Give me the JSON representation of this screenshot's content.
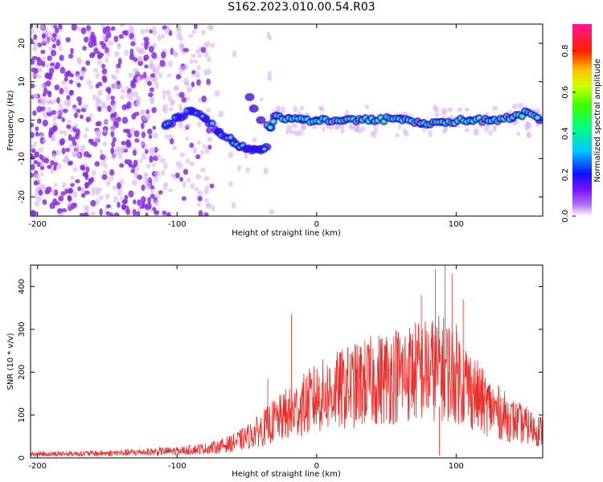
{
  "figure": {
    "title": "S162.2023.010.00.54.R03"
  },
  "colors": {
    "axis": "#000000",
    "snr_line": "#e8302c",
    "track_core": "#00e5d0",
    "track_hot": "#ff2020",
    "noise_purple": "#8a2be2",
    "noise_light": "#d9b3f5"
  },
  "chart_data": [
    {
      "type": "heatmap",
      "ylabel": "Frequency (Hz)",
      "xlabel": "Height of straight line (km)",
      "xlim": [
        -205,
        162
      ],
      "ylim": [
        -25,
        25
      ],
      "xticks": [
        -200,
        -100,
        0,
        100
      ],
      "yticks": [
        20,
        10,
        0,
        -10,
        -20
      ],
      "grid": false,
      "colorbar": {
        "label": "Normalized spectral amplitude",
        "range": [
          0.0,
          0.93
        ],
        "ticks": [
          0.0,
          0.2,
          0.4,
          0.6,
          0.8
        ],
        "colormap": [
          "#ffffff",
          "#8a2be2",
          "#1f10ff",
          "#00c8ff",
          "#00ff40",
          "#d0ff00",
          "#ffc000",
          "#ff2000",
          "#ff1493"
        ]
      },
      "track": [
        {
          "x": -108,
          "y": -1.5
        },
        {
          "x": -100,
          "y": 0.5
        },
        {
          "x": -90,
          "y": 2.5
        },
        {
          "x": -80,
          "y": 0.5
        },
        {
          "x": -70,
          "y": -3
        },
        {
          "x": -60,
          "y": -5.5
        },
        {
          "x": -55,
          "y": -7
        },
        {
          "x": -50,
          "y": -7.5
        },
        {
          "x": -45,
          "y": -7.5
        },
        {
          "x": -40,
          "y": -7.5
        },
        {
          "x": -36,
          "y": -7
        },
        {
          "x": -48,
          "y": 6
        },
        {
          "x": -45,
          "y": 3
        },
        {
          "x": -40,
          "y": 0
        },
        {
          "x": -33,
          "y": -2
        },
        {
          "x": -30,
          "y": 1
        },
        {
          "x": -20,
          "y": 0.5
        },
        {
          "x": -10,
          "y": 0
        },
        {
          "x": 0,
          "y": 0
        },
        {
          "x": 20,
          "y": 0
        },
        {
          "x": 40,
          "y": 0
        },
        {
          "x": 60,
          "y": 0.5
        },
        {
          "x": 75,
          "y": -1
        },
        {
          "x": 90,
          "y": -0.5
        },
        {
          "x": 110,
          "y": 0
        },
        {
          "x": 125,
          "y": 0
        },
        {
          "x": 140,
          "y": 0.5
        },
        {
          "x": 150,
          "y": 2
        },
        {
          "x": 160,
          "y": 0
        }
      ]
    },
    {
      "type": "line",
      "ylabel": "SNR (10 * v/v)",
      "xlabel": "Height of straight line (km)",
      "xlim": [
        -205,
        162
      ],
      "ylim": [
        0,
        450
      ],
      "xticks": [
        -200,
        -100,
        0,
        100
      ],
      "yticks": [
        0,
        100,
        200,
        300,
        400
      ],
      "grid": false,
      "series": [
        {
          "envelope_x": [
            -205,
            -150,
            -100,
            -90,
            -80,
            -70,
            -60,
            -50,
            -40,
            -30,
            -20,
            -10,
            0,
            20,
            40,
            60,
            80,
            90,
            100,
            110,
            120,
            140,
            162
          ],
          "envelope_y": [
            10,
            12,
            18,
            22,
            25,
            30,
            40,
            55,
            75,
            100,
            115,
            140,
            160,
            185,
            205,
            225,
            235,
            240,
            225,
            185,
            145,
            100,
            70
          ],
          "spikes": [
            {
              "x": -35,
              "y": 185
            },
            {
              "x": -18,
              "y": 335
            },
            {
              "x": -22,
              "y": 160
            },
            {
              "x": 85,
              "y": 440
            },
            {
              "x": 92,
              "y": 450
            },
            {
              "x": 97,
              "y": 430
            },
            {
              "x": 75,
              "y": 380
            },
            {
              "x": 105,
              "y": 370
            },
            {
              "x": 88,
              "y": 5
            }
          ]
        }
      ]
    }
  ]
}
